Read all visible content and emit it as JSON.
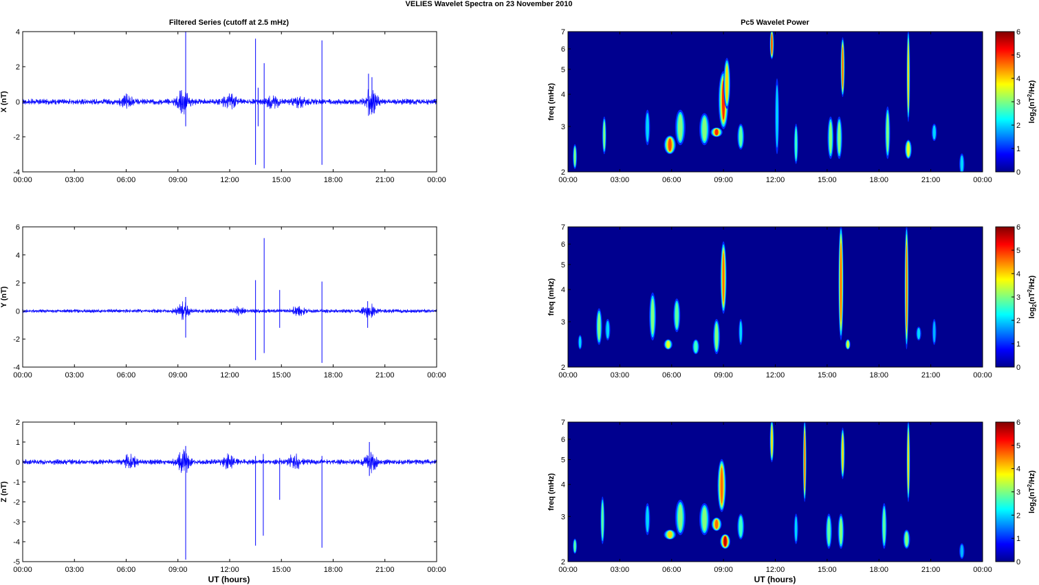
{
  "figure": {
    "title": "VELIES Wavelet Spectra on 23 November  2010",
    "left_title": "Filtered Series (cutoff at 2.5 mHz)",
    "right_title": "Pc5 Wavelet Power",
    "xlabel": "UT (hours)"
  },
  "colors": {
    "trace": "#0000ff",
    "heat_background": "#00008f"
  },
  "chart_data": [
    {
      "type": "line",
      "name": "X",
      "ylabel": "X (nT)",
      "ylim": [
        -4,
        4
      ],
      "yticks": [
        "4",
        "2",
        "0",
        "-2",
        "-4"
      ],
      "xlim": [
        0,
        24
      ],
      "xticks": [
        "00:00",
        "03:00",
        "06:00",
        "09:00",
        "12:00",
        "15:00",
        "18:00",
        "21:00",
        "00:00"
      ],
      "baseline_amplitude": 0.15,
      "bursts": [
        [
          6.0,
          0.3
        ],
        [
          9.3,
          0.6
        ],
        [
          12.0,
          0.35
        ],
        [
          14.5,
          0.3
        ],
        [
          16.0,
          0.25
        ],
        [
          20.2,
          0.6
        ]
      ],
      "spikes": [
        [
          9.45,
          4.0,
          -1.4
        ],
        [
          13.5,
          3.6,
          -3.6
        ],
        [
          13.65,
          0.8,
          -1.4
        ],
        [
          14.0,
          2.2,
          -3.8
        ],
        [
          17.35,
          3.5,
          -3.6
        ],
        [
          20.05,
          1.6,
          -0.8
        ],
        [
          20.25,
          1.4,
          -0.6
        ]
      ]
    },
    {
      "type": "line",
      "name": "Y",
      "ylabel": "Y (nT)",
      "ylim": [
        -4,
        6
      ],
      "yticks": [
        "6",
        "4",
        "2",
        "0",
        "-2",
        "-4"
      ],
      "xlim": [
        0,
        24
      ],
      "xticks": [
        "00:00",
        "03:00",
        "06:00",
        "09:00",
        "12:00",
        "15:00",
        "18:00",
        "21:00",
        "00:00"
      ],
      "baseline_amplitude": 0.12,
      "bursts": [
        [
          9.3,
          0.5
        ],
        [
          12.5,
          0.2
        ],
        [
          16.0,
          0.3
        ],
        [
          20.1,
          0.4
        ]
      ],
      "spikes": [
        [
          9.45,
          1.0,
          -1.9
        ],
        [
          13.5,
          2.2,
          -3.5
        ],
        [
          14.0,
          5.2,
          -3.0
        ],
        [
          14.9,
          1.5,
          -1.2
        ],
        [
          17.35,
          2.1,
          -3.7
        ],
        [
          20.0,
          0.7,
          -1.2
        ]
      ]
    },
    {
      "type": "line",
      "name": "Z",
      "ylabel": "Z (nT)",
      "ylim": [
        -5,
        2
      ],
      "yticks": [
        "2",
        "1",
        "0",
        "-1",
        "-2",
        "-3",
        "-4",
        "-5"
      ],
      "xlim": [
        0,
        24
      ],
      "xticks": [
        "00:00",
        "03:00",
        "06:00",
        "09:00",
        "12:00",
        "15:00",
        "18:00",
        "21:00",
        "00:00"
      ],
      "baseline_amplitude": 0.12,
      "bursts": [
        [
          6.2,
          0.3
        ],
        [
          9.3,
          0.55
        ],
        [
          12.0,
          0.3
        ],
        [
          15.8,
          0.35
        ],
        [
          20.2,
          0.4
        ]
      ],
      "spikes": [
        [
          9.45,
          0.8,
          -4.9
        ],
        [
          13.5,
          0.3,
          -4.2
        ],
        [
          13.95,
          0.4,
          -3.7
        ],
        [
          14.9,
          0.2,
          -1.9
        ],
        [
          17.35,
          0.3,
          -4.3
        ],
        [
          20.1,
          1.0,
          -0.7
        ]
      ]
    },
    {
      "type": "heatmap",
      "name": "X wavelet power",
      "ylabel": "freq (mHz)",
      "yscale": "log",
      "ylim": [
        2,
        7
      ],
      "yticks": [
        "7",
        "6",
        "5",
        "4",
        "3",
        "2"
      ],
      "xlim": [
        0,
        24
      ],
      "xticks": [
        "00:00",
        "03:00",
        "06:00",
        "09:00",
        "12:00",
        "15:00",
        "18:00",
        "21:00",
        "00:00"
      ],
      "colorbar_label": "log2(nT2/Hz)",
      "colorbar_range": [
        0,
        6
      ],
      "colorbar_ticks": [
        "6",
        "5",
        "4",
        "3",
        "2",
        "1",
        "0"
      ],
      "blobs": [
        [
          0.4,
          2.5,
          2.1,
          0.12,
          3.0
        ],
        [
          2.1,
          2.4,
          3.2,
          0.12,
          3.0
        ],
        [
          4.6,
          2.6,
          3.4,
          0.15,
          2.2
        ],
        [
          5.9,
          2.7,
          2.4,
          0.35,
          4.8
        ],
        [
          6.5,
          2.6,
          3.4,
          0.3,
          3.2
        ],
        [
          7.9,
          2.6,
          3.3,
          0.3,
          3.0
        ],
        [
          8.6,
          2.8,
          2.9,
          0.35,
          5.4
        ],
        [
          9.0,
          3.0,
          4.8,
          0.3,
          5.1
        ],
        [
          9.2,
          3.6,
          5.4,
          0.2,
          4.2
        ],
        [
          10.0,
          3.0,
          2.5,
          0.2,
          2.8
        ],
        [
          11.8,
          5.6,
          7.0,
          0.12,
          5.2
        ],
        [
          12.1,
          2.4,
          4.5,
          0.12,
          2.4
        ],
        [
          13.2,
          2.2,
          3.0,
          0.12,
          2.6
        ],
        [
          15.2,
          2.3,
          3.2,
          0.18,
          3.0
        ],
        [
          15.7,
          2.3,
          3.2,
          0.18,
          3.2
        ],
        [
          15.9,
          4.0,
          6.5,
          0.12,
          4.7
        ],
        [
          18.5,
          2.3,
          3.5,
          0.15,
          3.0
        ],
        [
          19.7,
          2.3,
          2.6,
          0.2,
          3.6
        ],
        [
          19.7,
          3.2,
          7.0,
          0.1,
          4.4
        ],
        [
          21.2,
          2.7,
          3.0,
          0.15,
          2.0
        ],
        [
          22.8,
          2.3,
          2.0,
          0.15,
          2.0
        ]
      ]
    },
    {
      "type": "heatmap",
      "name": "Y wavelet power",
      "ylabel": "freq (mHz)",
      "yscale": "log",
      "ylim": [
        2,
        7
      ],
      "yticks": [
        "7",
        "6",
        "5",
        "4",
        "3",
        "2"
      ],
      "xlim": [
        0,
        24
      ],
      "xticks": [
        "00:00",
        "03:00",
        "06:00",
        "09:00",
        "12:00",
        "15:00",
        "18:00",
        "21:00",
        "00:00"
      ],
      "colorbar_label": "log2(nT2/Hz)",
      "colorbar_range": [
        0,
        6
      ],
      "colorbar_ticks": [
        "6",
        "5",
        "4",
        "3",
        "2",
        "1",
        "0"
      ],
      "blobs": [
        [
          0.7,
          2.4,
          2.6,
          0.12,
          2.2
        ],
        [
          1.8,
          2.5,
          3.3,
          0.18,
          3.0
        ],
        [
          2.3,
          2.6,
          3.0,
          0.15,
          2.4
        ],
        [
          4.9,
          2.6,
          3.8,
          0.2,
          3.0
        ],
        [
          5.8,
          2.5,
          2.4,
          0.25,
          3.6
        ],
        [
          6.3,
          2.8,
          3.6,
          0.2,
          2.8
        ],
        [
          7.4,
          2.3,
          2.5,
          0.2,
          2.6
        ],
        [
          8.6,
          2.3,
          3.0,
          0.2,
          3.0
        ],
        [
          9.0,
          3.3,
          6.0,
          0.18,
          4.6
        ],
        [
          10.0,
          2.5,
          3.0,
          0.12,
          2.2
        ],
        [
          15.8,
          2.6,
          7.0,
          0.15,
          4.6
        ],
        [
          16.2,
          2.4,
          2.5,
          0.15,
          3.5
        ],
        [
          19.6,
          2.4,
          7.0,
          0.12,
          4.6
        ],
        [
          20.3,
          2.6,
          2.8,
          0.15,
          2.2
        ],
        [
          21.2,
          2.5,
          3.0,
          0.12,
          1.8
        ]
      ]
    },
    {
      "type": "heatmap",
      "name": "Z wavelet power",
      "ylabel": "freq (mHz)",
      "yscale": "log",
      "ylim": [
        2,
        7
      ],
      "yticks": [
        "7",
        "6",
        "5",
        "4",
        "3",
        "2"
      ],
      "xlim": [
        0,
        24
      ],
      "xticks": [
        "00:00",
        "03:00",
        "06:00",
        "09:00",
        "12:00",
        "15:00",
        "18:00",
        "21:00",
        "00:00"
      ],
      "colorbar_label": "log2(nT2/Hz)",
      "colorbar_range": [
        0,
        6
      ],
      "colorbar_ticks": [
        "6",
        "5",
        "4",
        "3",
        "2",
        "1",
        "0"
      ],
      "blobs": [
        [
          0.4,
          2.4,
          2.2,
          0.12,
          2.8
        ],
        [
          2.0,
          2.4,
          3.5,
          0.12,
          2.8
        ],
        [
          4.6,
          2.6,
          3.3,
          0.15,
          2.4
        ],
        [
          5.9,
          2.6,
          2.5,
          0.35,
          4.4
        ],
        [
          6.5,
          2.6,
          3.4,
          0.3,
          3.0
        ],
        [
          7.9,
          2.6,
          3.3,
          0.3,
          3.2
        ],
        [
          8.6,
          2.7,
          2.9,
          0.3,
          4.6
        ],
        [
          9.1,
          2.5,
          2.3,
          0.3,
          5.6
        ],
        [
          8.9,
          3.2,
          4.9,
          0.25,
          4.6
        ],
        [
          10.0,
          3.0,
          2.5,
          0.2,
          2.6
        ],
        [
          11.8,
          5.0,
          7.0,
          0.12,
          4.4
        ],
        [
          13.2,
          2.4,
          3.0,
          0.12,
          2.4
        ],
        [
          13.7,
          3.5,
          7.0,
          0.1,
          4.6
        ],
        [
          15.1,
          2.3,
          3.0,
          0.18,
          2.8
        ],
        [
          15.8,
          2.3,
          3.0,
          0.18,
          3.2
        ],
        [
          15.9,
          4.3,
          6.5,
          0.12,
          4.4
        ],
        [
          18.3,
          2.3,
          3.3,
          0.15,
          2.8
        ],
        [
          19.6,
          2.3,
          2.6,
          0.2,
          3.4
        ],
        [
          19.7,
          3.5,
          7.0,
          0.1,
          4.2
        ],
        [
          22.8,
          2.3,
          2.1,
          0.15,
          1.8
        ]
      ]
    }
  ]
}
